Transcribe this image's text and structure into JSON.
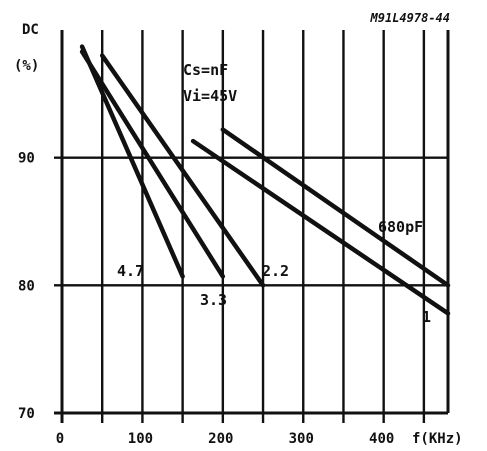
{
  "chart_data": {
    "type": "line",
    "code": "M91L4978-44",
    "ylabel_top": "DC",
    "ylabel_unit": "(%)",
    "xlabel": "f(KHz)",
    "xlim": [
      0,
      480
    ],
    "ylim": [
      70,
      100
    ],
    "x_ticks": [
      "0",
      "100",
      "200",
      "300",
      "400"
    ],
    "y_ticks": [
      "90",
      "80",
      "70"
    ],
    "conditions": [
      "Cs=nF",
      "Vi=45V"
    ],
    "series": [
      {
        "name": "4.7",
        "x": [
          25,
          150
        ],
        "y": [
          98.7,
          80.7
        ]
      },
      {
        "name": "3.3",
        "x": [
          25,
          200
        ],
        "y": [
          98.3,
          80.7
        ]
      },
      {
        "name": "2.2",
        "x": [
          50,
          250
        ],
        "y": [
          98.0,
          80.0
        ]
      },
      {
        "name": "680pF",
        "x": [
          200,
          480
        ],
        "y": [
          92.2,
          80.0
        ]
      },
      {
        "name": "1",
        "x": [
          163,
          480
        ],
        "y": [
          91.3,
          77.8
        ]
      }
    ],
    "series_labels": [
      "4.7",
      "3.3",
      "2.2",
      "680pF",
      "1"
    ]
  }
}
